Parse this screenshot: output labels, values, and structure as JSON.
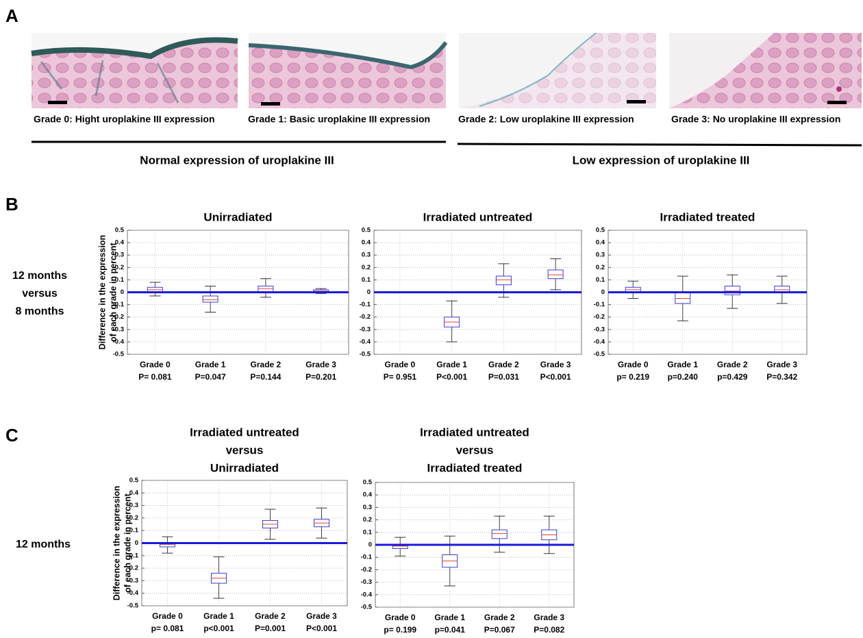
{
  "panel_labels": [
    "A",
    "B",
    "C"
  ],
  "panel_a": {
    "images": [
      {
        "caption": "Grade 0: Hight uroplakine III expression"
      },
      {
        "caption": "Grade 1: Basic uroplakine III expression"
      },
      {
        "caption": "Grade 2: Low uroplakine III expression"
      },
      {
        "caption": "Grade 3: No uroplakine III expression"
      }
    ],
    "groups": [
      "Normal expression of uroplakine III",
      "Low expression of uroplakine III"
    ]
  },
  "row_labels": {
    "b": [
      "12 months",
      "versus",
      "8 months"
    ],
    "c": [
      "12 months"
    ]
  },
  "chart_data": [
    {
      "type": "box",
      "title": [
        "Unirradiated"
      ],
      "ylabel": [
        "Difference in the expression",
        "of each grade in percent"
      ],
      "categories": [
        "Grade 0",
        "Grade 1",
        "Grade 2",
        "Grade 3"
      ],
      "p_values": [
        "P= 0.081",
        "P=0.047",
        "P=0.144",
        "P=0.201"
      ],
      "boxes": [
        {
          "whislo": -0.03,
          "q1": 0.0,
          "med": 0.02,
          "q3": 0.04,
          "whishi": 0.08
        },
        {
          "whislo": -0.16,
          "q1": -0.08,
          "med": -0.06,
          "q3": -0.03,
          "whishi": 0.05
        },
        {
          "whislo": -0.04,
          "q1": 0.0,
          "med": 0.03,
          "q3": 0.05,
          "whishi": 0.11
        },
        {
          "whislo": -0.01,
          "q1": 0.0,
          "med": 0.01,
          "q3": 0.02,
          "whishi": 0.03
        }
      ],
      "ylim": [
        -0.5,
        0.5
      ],
      "yticks": [
        0.5,
        0.4,
        0.3,
        0.2,
        0.1,
        0,
        -0.1,
        -0.2,
        -0.3,
        -0.4,
        -0.5
      ],
      "reference_line": 0,
      "grid": true,
      "box_color": "#3b3bd6",
      "median_color": "#e0403a"
    },
    {
      "type": "box",
      "title": [
        "Irradiated untreated"
      ],
      "categories": [
        "Grade 0",
        "Grade 1",
        "Grade 2",
        "Grade 3"
      ],
      "p_values": [
        "P= 0.951",
        "P<0.001",
        "P=0.031",
        "P<0.001"
      ],
      "boxes": [
        {
          "whislo": 0,
          "q1": 0,
          "med": 0,
          "q3": 0,
          "whishi": 0
        },
        {
          "whislo": -0.4,
          "q1": -0.28,
          "med": -0.24,
          "q3": -0.2,
          "whishi": -0.07
        },
        {
          "whislo": -0.04,
          "q1": 0.06,
          "med": 0.1,
          "q3": 0.13,
          "whishi": 0.23
        },
        {
          "whislo": 0.02,
          "q1": 0.11,
          "med": 0.14,
          "q3": 0.18,
          "whishi": 0.27
        }
      ],
      "ylim": [
        -0.5,
        0.5
      ],
      "yticks": [
        0.5,
        0.4,
        0.3,
        0.2,
        0.1,
        0,
        -0.1,
        -0.2,
        -0.3,
        -0.4,
        -0.5
      ],
      "reference_line": 0,
      "grid": true,
      "box_color": "#3b3bd6",
      "median_color": "#e0403a"
    },
    {
      "type": "box",
      "title": [
        "Irradiated treated"
      ],
      "categories": [
        "Grade 0",
        "Grade 1",
        "Grade 2",
        "Grade 3"
      ],
      "p_values": [
        "p= 0.219",
        "p=0.240",
        "p=0.429",
        "P=0.342"
      ],
      "boxes": [
        {
          "whislo": -0.05,
          "q1": 0.0,
          "med": 0.02,
          "q3": 0.04,
          "whishi": 0.09
        },
        {
          "whislo": -0.23,
          "q1": -0.09,
          "med": -0.05,
          "q3": 0.0,
          "whishi": 0.13
        },
        {
          "whislo": -0.13,
          "q1": -0.02,
          "med": 0.01,
          "q3": 0.05,
          "whishi": 0.14
        },
        {
          "whislo": -0.09,
          "q1": 0.0,
          "med": 0.02,
          "q3": 0.05,
          "whishi": 0.13
        }
      ],
      "ylim": [
        -0.5,
        0.5
      ],
      "yticks": [
        0.5,
        0.4,
        0.3,
        0.2,
        0.1,
        0,
        -0.1,
        -0.2,
        -0.3,
        -0.4,
        -0.5
      ],
      "reference_line": 0,
      "grid": true,
      "box_color": "#3b3bd6",
      "median_color": "#e0403a"
    },
    {
      "type": "box",
      "title": [
        "Irradiated untreated",
        "versus",
        "Unirradiated"
      ],
      "ylabel": [
        "Difference in the expression",
        "of each grade in percent"
      ],
      "categories": [
        "Grade 0",
        "Grade 1",
        "Grade 2",
        "Grade 3"
      ],
      "p_values": [
        "p= 0.081",
        "p<0.001",
        "P=0.001",
        "P<0.001"
      ],
      "boxes": [
        {
          "whislo": -0.08,
          "q1": -0.03,
          "med": -0.01,
          "q3": 0.0,
          "whishi": 0.05
        },
        {
          "whislo": -0.44,
          "q1": -0.32,
          "med": -0.28,
          "q3": -0.24,
          "whishi": -0.11
        },
        {
          "whislo": 0.03,
          "q1": 0.12,
          "med": 0.15,
          "q3": 0.18,
          "whishi": 0.27
        },
        {
          "whislo": 0.04,
          "q1": 0.13,
          "med": 0.16,
          "q3": 0.19,
          "whishi": 0.28
        }
      ],
      "ylim": [
        -0.5,
        0.5
      ],
      "yticks": [
        0.5,
        0.4,
        0.3,
        0.2,
        0.1,
        0,
        -0.1,
        -0.2,
        -0.3,
        -0.4,
        -0.5
      ],
      "reference_line": 0,
      "grid": true,
      "box_color": "#3b3bd6",
      "median_color": "#e0403a"
    },
    {
      "type": "box",
      "title": [
        "Irradiated untreated",
        "versus",
        "Irradiated treated"
      ],
      "categories": [
        "Grade 0",
        "Grade 1",
        "Grade 2",
        "Grade 3"
      ],
      "p_values": [
        "p= 0.199",
        "p=0.041",
        "P=0.067",
        "P=0.082"
      ],
      "boxes": [
        {
          "whislo": -0.09,
          "q1": -0.03,
          "med": -0.01,
          "q3": 0.0,
          "whishi": 0.06
        },
        {
          "whislo": -0.33,
          "q1": -0.18,
          "med": -0.13,
          "q3": -0.08,
          "whishi": 0.07
        },
        {
          "whislo": -0.06,
          "q1": 0.05,
          "med": 0.09,
          "q3": 0.12,
          "whishi": 0.23
        },
        {
          "whislo": -0.07,
          "q1": 0.04,
          "med": 0.08,
          "q3": 0.12,
          "whishi": 0.23
        }
      ],
      "ylim": [
        -0.5,
        0.5
      ],
      "yticks": [
        0.5,
        0.4,
        0.3,
        0.2,
        0.1,
        0,
        -0.1,
        -0.2,
        -0.3,
        -0.4,
        -0.5
      ],
      "reference_line": 0,
      "grid": true,
      "box_color": "#3b3bd6",
      "median_color": "#e0403a"
    }
  ]
}
